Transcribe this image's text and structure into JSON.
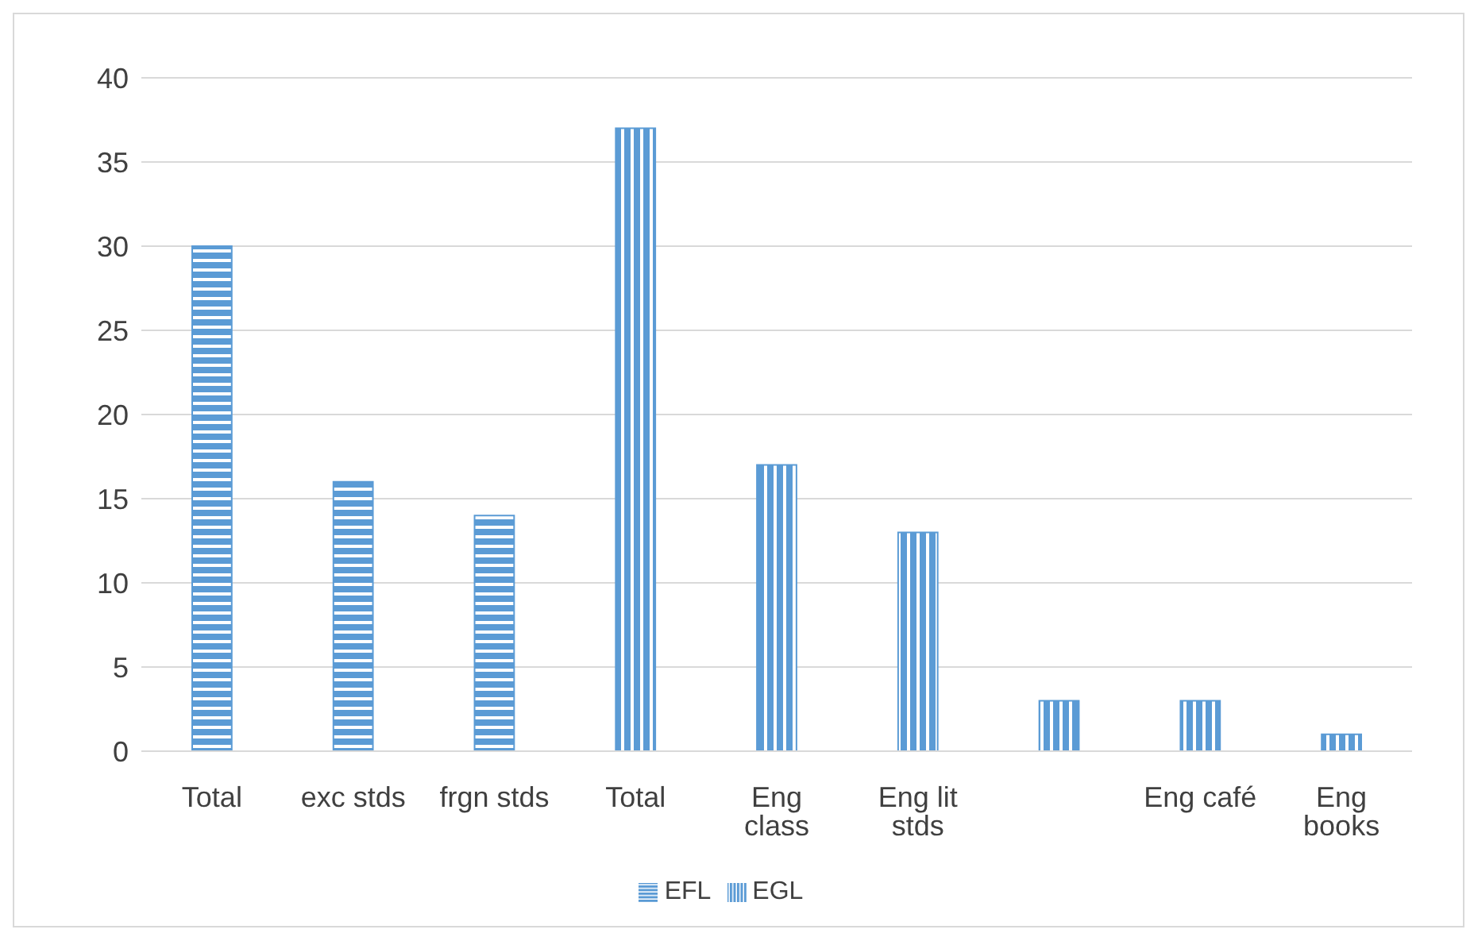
{
  "chart_data": {
    "type": "bar",
    "stacked": true,
    "categories": [
      "Total",
      "exc stds",
      "frgn stds",
      "Total",
      "Eng class",
      "Eng lit stds",
      null,
      "Eng café",
      "Eng books"
    ],
    "series": [
      {
        "name": "EFL",
        "color": "#5b9bd5",
        "values": [
          30,
          16,
          14,
          null,
          null,
          null,
          null,
          null,
          null
        ]
      },
      {
        "name": "EGL",
        "color": "#5b9bd5",
        "values": [
          null,
          null,
          null,
          37,
          17,
          13,
          3,
          3,
          1
        ]
      }
    ],
    "ylim": [
      0,
      40
    ],
    "yticks": [
      0,
      5,
      10,
      15,
      20,
      25,
      30,
      35,
      40
    ],
    "grid": "y",
    "legend": "bottom"
  }
}
